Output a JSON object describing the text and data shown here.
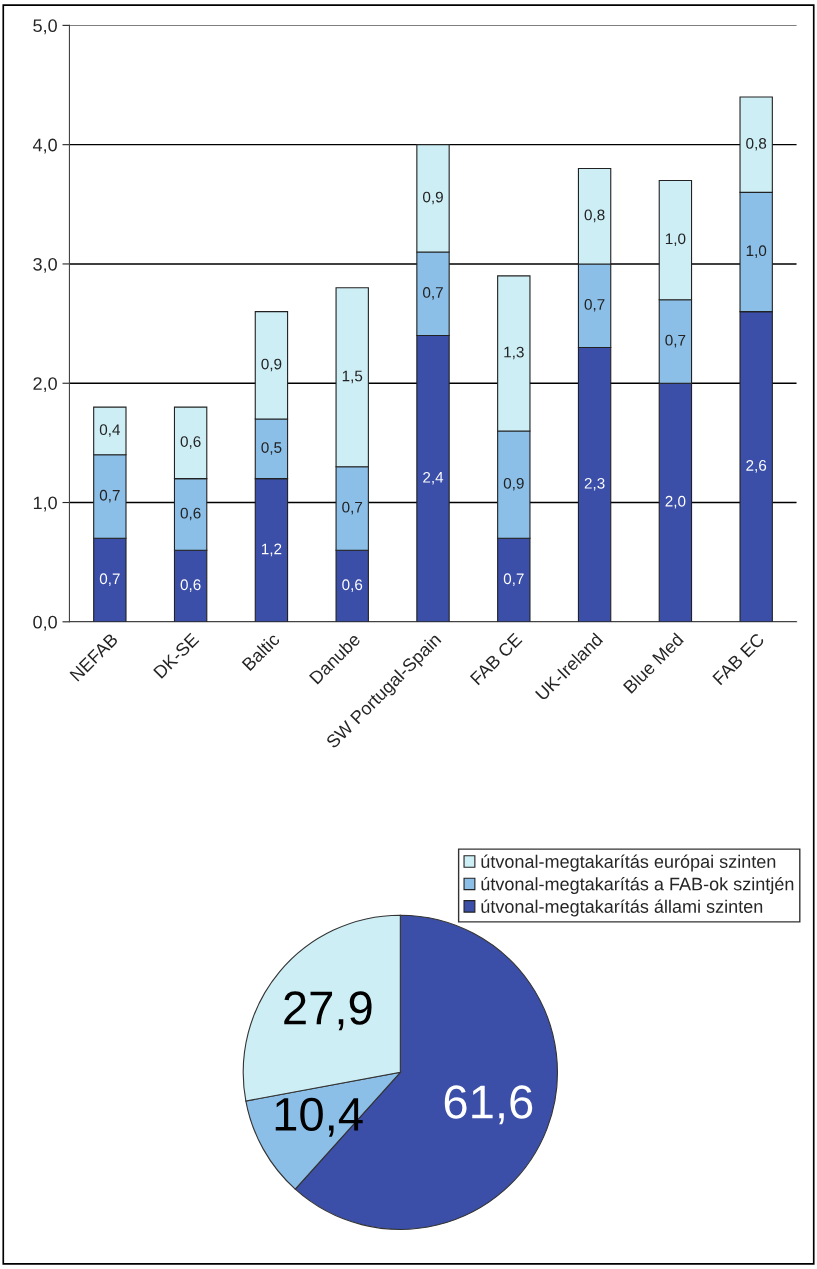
{
  "chart_data": [
    {
      "type": "bar",
      "stacked": true,
      "categories": [
        "NEFAB",
        "DK-SE",
        "Baltic",
        "Danube",
        "SW Portugal-Spain",
        "FAB CE",
        "UK-Ireland",
        "Blue Med",
        "FAB EC"
      ],
      "series": [
        {
          "name": "útvonal-megtakarítás állami szinten",
          "color": "#3b4fa8",
          "values": [
            0.7,
            0.6,
            1.2,
            0.6,
            2.4,
            0.7,
            2.3,
            2.0,
            2.6
          ],
          "value_labels": [
            "0,7",
            "0,6",
            "1,2",
            "0,6",
            "2,4",
            "0,7",
            "2,3",
            "2,0",
            "2,6"
          ]
        },
        {
          "name": "útvonal-megtakarítás a FAB-ok szintjén",
          "color": "#8cbfe8",
          "values": [
            0.7,
            0.6,
            0.5,
            0.7,
            0.7,
            0.9,
            0.7,
            0.7,
            1.0
          ],
          "value_labels": [
            "0,7",
            "0,6",
            "0,5",
            "0,7",
            "0,7",
            "0,9",
            "0,7",
            "0,7",
            "1,0"
          ]
        },
        {
          "name": "útvonal-megtakarítás európai szinten",
          "color": "#cdeef5",
          "values": [
            0.4,
            0.6,
            0.9,
            1.5,
            0.9,
            1.3,
            0.8,
            1.0,
            0.8
          ],
          "value_labels": [
            "0,4",
            "0,6",
            "0,9",
            "1,5",
            "0,9",
            "1,3",
            "0,8",
            "1,0",
            "0,8"
          ]
        }
      ],
      "ylim": [
        0,
        5
      ],
      "yticks": [
        {
          "value": 0,
          "label": "0,0"
        },
        {
          "value": 1,
          "label": "1,0"
        },
        {
          "value": 2,
          "label": "2,0"
        },
        {
          "value": 3,
          "label": "3,0"
        },
        {
          "value": 4,
          "label": "4,0"
        },
        {
          "value": 5,
          "label": "5,0"
        }
      ],
      "grid": "y",
      "legend": "bottom right"
    },
    {
      "type": "pie",
      "categories": [
        null,
        null,
        null
      ],
      "values": [
        61.6,
        10.4,
        27.9
      ],
      "colors": [
        "#3b4fa8",
        "#8cbfe8",
        "#cdeef5"
      ],
      "value_labels": [
        "61,6",
        "10,4",
        "27,9"
      ]
    }
  ]
}
